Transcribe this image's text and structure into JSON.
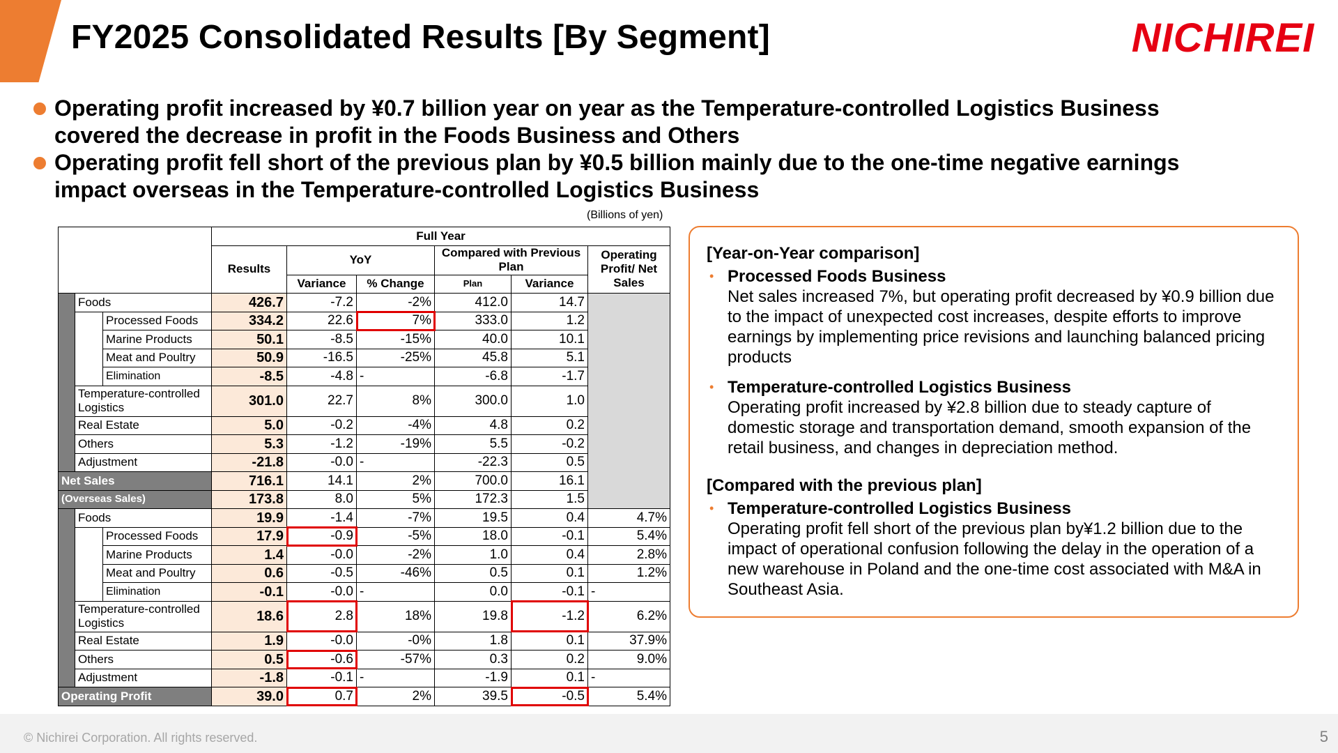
{
  "title": "FY2025 Consolidated Results [By Segment]",
  "logo_text": "NICHIREI",
  "colors": {
    "accent": "#ED7D31",
    "logo_red": "#E60012",
    "highlight_red": "#E00000",
    "results_bg": "#FCE9D9"
  },
  "bullets": [
    "Operating profit increased by ¥0.7 billion year on year as the Temperature-controlled Logistics Business covered the decrease in profit in the Foods Business and Others",
    "Operating profit fell short of the previous plan by ¥0.5 billion mainly due to the one-time negative earnings impact overseas in the Temperature-controlled Logistics Business"
  ],
  "unit_note": "(Billions of yen)",
  "table": {
    "header": {
      "full_year": "Full Year",
      "results": "Results",
      "yoy": "YoY",
      "compared": "Compared with Previous Plan",
      "op_ratio": "Operating Profit/ Net Sales",
      "variance": "Variance",
      "pct_change": "% Change",
      "plan": "Plan",
      "variance2": "Variance"
    },
    "sales_rows": [
      {
        "label": "Foods",
        "results": "426.7",
        "var": "-7.2",
        "pct": "-2%",
        "plan": "412.0",
        "pvar": "14.7"
      },
      {
        "label": "Processed Foods",
        "results": "334.2",
        "var": "22.6",
        "pct": "7%",
        "plan": "333.0",
        "pvar": "1.2"
      },
      {
        "label": "Marine Products",
        "results": "50.1",
        "var": "-8.5",
        "pct": "-15%",
        "plan": "40.0",
        "pvar": "10.1"
      },
      {
        "label": "Meat and Poultry",
        "results": "50.9",
        "var": "-16.5",
        "pct": "-25%",
        "plan": "45.8",
        "pvar": "5.1"
      },
      {
        "label": "Elimination",
        "results": "-8.5",
        "var": "-4.8",
        "pct": "-",
        "plan": "-6.8",
        "pvar": "-1.7"
      },
      {
        "label": "Temperature-controlled Logistics",
        "results": "301.0",
        "var": "22.7",
        "pct": "8%",
        "plan": "300.0",
        "pvar": "1.0"
      },
      {
        "label": "Real Estate",
        "results": "5.0",
        "var": "-0.2",
        "pct": "-4%",
        "plan": "4.8",
        "pvar": "0.2"
      },
      {
        "label": "Others",
        "results": "5.3",
        "var": "-1.2",
        "pct": "-19%",
        "plan": "5.5",
        "pvar": "-0.2"
      },
      {
        "label": "Adjustment",
        "results": "-21.8",
        "var": "-0.0",
        "pct": "-",
        "plan": "-22.3",
        "pvar": "0.5"
      }
    ],
    "net_sales": {
      "label": "Net Sales",
      "results": "716.1",
      "var": "14.1",
      "pct": "2%",
      "plan": "700.0",
      "pvar": "16.1"
    },
    "overseas": {
      "label": "(Overseas Sales)",
      "results": "173.8",
      "var": "8.0",
      "pct": "5%",
      "plan": "172.3",
      "pvar": "1.5"
    },
    "op_rows": [
      {
        "label": "Foods",
        "results": "19.9",
        "var": "-1.4",
        "pct": "-7%",
        "plan": "19.5",
        "pvar": "0.4",
        "ratio": "4.7%"
      },
      {
        "label": "Processed Foods",
        "results": "17.9",
        "var": "-0.9",
        "pct": "-5%",
        "plan": "18.0",
        "pvar": "-0.1",
        "ratio": "5.4%"
      },
      {
        "label": "Marine Products",
        "results": "1.4",
        "var": "-0.0",
        "pct": "-2%",
        "plan": "1.0",
        "pvar": "0.4",
        "ratio": "2.8%"
      },
      {
        "label": "Meat and Poultry",
        "results": "0.6",
        "var": "-0.5",
        "pct": "-46%",
        "plan": "0.5",
        "pvar": "0.1",
        "ratio": "1.2%"
      },
      {
        "label": "Elimination",
        "results": "-0.1",
        "var": "-0.0",
        "pct": "-",
        "plan": "0.0",
        "pvar": "-0.1",
        "ratio": "-"
      },
      {
        "label": "Temperature-controlled Logistics",
        "results": "18.6",
        "var": "2.8",
        "pct": "18%",
        "plan": "19.8",
        "pvar": "-1.2",
        "ratio": "6.2%"
      },
      {
        "label": "Real Estate",
        "results": "1.9",
        "var": "-0.0",
        "pct": "-0%",
        "plan": "1.8",
        "pvar": "0.1",
        "ratio": "37.9%"
      },
      {
        "label": "Others",
        "results": "0.5",
        "var": "-0.6",
        "pct": "-57%",
        "plan": "0.3",
        "pvar": "0.2",
        "ratio": "9.0%"
      },
      {
        "label": "Adjustment",
        "results": "-1.8",
        "var": "-0.1",
        "pct": "-",
        "plan": "-1.9",
        "pvar": "0.1",
        "ratio": "-"
      }
    ],
    "op_total": {
      "label": "Operating Profit",
      "results": "39.0",
      "var": "0.7",
      "pct": "2%",
      "plan": "39.5",
      "pvar": "-0.5",
      "ratio": "5.4%"
    }
  },
  "commentary": {
    "yoy_heading": "[Year-on-Year comparison]",
    "yoy_items": [
      {
        "title": "Processed Foods Business",
        "text": "Net sales increased 7%, but operating profit decreased by ¥0.9 billion due to the impact of unexpected cost increases, despite efforts to improve earnings by implementing price revisions and launching balanced pricing products"
      },
      {
        "title": "Temperature-controlled Logistics Business",
        "text": "Operating profit increased by ¥2.8 billion due to steady capture of domestic storage and transportation demand, smooth expansion of the retail business, and changes in depreciation method."
      }
    ],
    "plan_heading": "[Compared with the previous plan]",
    "plan_items": [
      {
        "title": "Temperature-controlled Logistics Business",
        "text": "Operating profit fell short of the previous plan by¥1.2 billion due to the impact of operational confusion following the delay in the operation of a new warehouse in Poland and the one-time cost associated with M&A in Southeast Asia."
      }
    ],
    "bullet_icon": "triangle-bullet-icon"
  },
  "footer": {
    "copyright": "© Nichirei Corporation. All rights reserved.",
    "page_number": "5"
  }
}
